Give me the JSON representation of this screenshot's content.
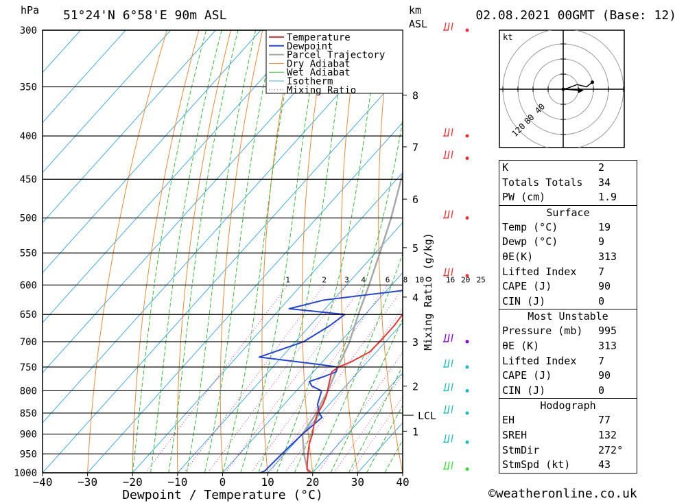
{
  "header": {
    "location": "51°24'N  6°58'E  90m  ASL",
    "datetime": "02.08.2021  00GMT  (Base: 12)",
    "pressure_unit": "hPa",
    "height_unit_line1": "km",
    "height_unit_line2": "ASL"
  },
  "chart_data": {
    "type": "line",
    "title": "",
    "xlabel": "Dewpoint / Temperature (°C)",
    "ylabel": "hPa",
    "mixing_ratio_axis_label": "Mixing Ratio (g/kg)",
    "xlim": [
      -40,
      40
    ],
    "ylim": [
      1000,
      300
    ],
    "y_scale": "log",
    "x_ticks": [
      "−40",
      "−30",
      "−20",
      "−10",
      "0",
      "10",
      "20",
      "30",
      "40"
    ],
    "x_tick_values": [
      -40,
      -30,
      -20,
      -10,
      0,
      10,
      20,
      30,
      40
    ],
    "pressure_levels": [
      300,
      350,
      400,
      450,
      500,
      550,
      600,
      650,
      700,
      750,
      800,
      850,
      900,
      950,
      1000
    ],
    "height_km_labels": [
      {
        "km": "8",
        "p": 358
      },
      {
        "km": "7",
        "p": 412
      },
      {
        "km": "6",
        "p": 475
      },
      {
        "km": "5",
        "p": 542
      },
      {
        "km": "4",
        "p": 620
      },
      {
        "km": "3",
        "p": 700
      },
      {
        "km": "2",
        "p": 790
      },
      {
        "km": "1",
        "p": 893
      }
    ],
    "lcl": {
      "label": "LCL",
      "p": 855
    },
    "mixing_ratio_labels": [
      "1",
      "2",
      "3",
      "4",
      "6",
      "8",
      "10",
      "16",
      "20",
      "25"
    ],
    "legend": [
      "Temperature",
      "Dewpoint",
      "Parcel Trajectory",
      "Dry Adiabat",
      "Wet Adiabat",
      "Isotherm",
      "Mixing Ratio"
    ],
    "legend_position": "top-right",
    "colors": {
      "temperature": "#ee3333",
      "dewpoint": "#2244dd",
      "parcel": "#a8a8a8",
      "dry_adiabat": "#ee8833",
      "wet_adiabat": "#33bb33",
      "isotherm": "#44aaee",
      "mixing_ratio": "#dd3399"
    },
    "series": [
      {
        "name": "Temperature",
        "points": [
          [
            1000,
            19.8
          ],
          [
            990,
            18
          ],
          [
            970,
            16.6
          ],
          [
            950,
            15.2
          ],
          [
            925,
            13.5
          ],
          [
            900,
            12.2
          ],
          [
            875,
            10.5
          ],
          [
            850,
            9.2
          ],
          [
            830,
            8.6
          ],
          [
            810,
            7.6
          ],
          [
            790,
            6.2
          ],
          [
            780,
            5.5
          ],
          [
            770,
            4.8
          ],
          [
            760,
            4.1
          ],
          [
            750,
            4.6
          ],
          [
            740,
            6.3
          ],
          [
            720,
            8.5
          ],
          [
            700,
            8.7
          ],
          [
            670,
            8.7
          ],
          [
            650,
            8.3
          ],
          [
            620,
            8.7
          ],
          [
            600,
            8.7
          ],
          [
            580,
            9.4
          ],
          [
            570,
            10.3
          ],
          [
            560,
            10.0
          ],
          [
            550,
            9.5
          ],
          [
            530,
            8.7
          ],
          [
            500,
            7.8
          ],
          [
            470,
            6.0
          ],
          [
            450,
            4.8
          ],
          [
            440,
            5.3
          ],
          [
            420,
            6.4
          ],
          [
            400,
            5.2
          ],
          [
            375,
            3.4
          ],
          [
            350,
            1.3
          ],
          [
            325,
            0.4
          ],
          [
            300,
            -1.1
          ]
        ]
      },
      {
        "name": "Dewpoint",
        "points": [
          [
            1000,
            8.3
          ],
          [
            995,
            9.0
          ],
          [
            950,
            9.4
          ],
          [
            900,
            10.0
          ],
          [
            860,
            11.0
          ],
          [
            850,
            9.5
          ],
          [
            830,
            7.4
          ],
          [
            800,
            5.6
          ],
          [
            790,
            2.5
          ],
          [
            780,
            1.0
          ],
          [
            770,
            3.2
          ],
          [
            760,
            5.0
          ],
          [
            750,
            4.4
          ],
          [
            745,
            0.0
          ],
          [
            730,
            -15.0
          ],
          [
            700,
            -8.2
          ],
          [
            670,
            -5.6
          ],
          [
            650,
            -4.5
          ],
          [
            640,
            -18.0
          ],
          [
            625,
            -12.0
          ],
          [
            605,
            7.6
          ],
          [
            600,
            7.8
          ],
          [
            580,
            7.0
          ],
          [
            570,
            4.0
          ],
          [
            550,
            5.0
          ],
          [
            510,
            5.4
          ],
          [
            500,
            3.6
          ],
          [
            490,
            1.2
          ],
          [
            470,
            2.1
          ],
          [
            450,
            4.0
          ],
          [
            440,
            2.8
          ],
          [
            430,
            -16.6
          ],
          [
            400,
            -20.0
          ],
          [
            360,
            -12.5
          ],
          [
            340,
            -19.0
          ],
          [
            330,
            -9.0
          ],
          [
            320,
            -12.0
          ],
          [
            310,
            -7.5
          ],
          [
            300,
            -9.0
          ]
        ]
      },
      {
        "name": "Parcel Trajectory",
        "points": [
          [
            1000,
            19.0
          ],
          [
            950,
            14.3
          ],
          [
            900,
            10.0
          ],
          [
            855,
            9.0
          ],
          [
            800,
            7.0
          ],
          [
            750,
            4.5
          ],
          [
            700,
            2.0
          ],
          [
            650,
            -1.5
          ],
          [
            600,
            -5.0
          ],
          [
            550,
            -9.0
          ],
          [
            500,
            -13.5
          ],
          [
            450,
            -19.0
          ],
          [
            400,
            -25.0
          ],
          [
            350,
            -32.0
          ],
          [
            300,
            -40.0
          ]
        ]
      }
    ],
    "wind_barbs": [
      {
        "p": 300,
        "color": "#ee3333"
      },
      {
        "p": 400,
        "color": "#ee3333"
      },
      {
        "p": 425,
        "color": "#ee3333"
      },
      {
        "p": 500,
        "color": "#ee3333"
      },
      {
        "p": 585,
        "color": "#ee3333"
      },
      {
        "p": 700,
        "color": "#8800cc"
      },
      {
        "p": 750,
        "color": "#22bbbb"
      },
      {
        "p": 800,
        "color": "#22bbbb"
      },
      {
        "p": 850,
        "color": "#22bbbb"
      },
      {
        "p": 920,
        "color": "#22bbbb"
      },
      {
        "p": 990,
        "color": "#33dd33"
      }
    ]
  },
  "hodograph": {
    "unit": "kt",
    "ring_labels": [
      "40",
      "80",
      "120"
    ],
    "trace": [
      [
        0,
        0
      ],
      [
        4,
        1
      ],
      [
        12,
        4
      ],
      [
        20,
        2
      ],
      [
        25,
        6
      ]
    ],
    "storm_motion": [
      14,
      -1
    ]
  },
  "indices": {
    "general": [
      {
        "label": "K",
        "value": "2"
      },
      {
        "label": "Totals Totals",
        "value": "34"
      },
      {
        "label": "PW (cm)",
        "value": "1.9"
      }
    ],
    "surface": {
      "title": "Surface",
      "rows": [
        {
          "label": "Temp (°C)",
          "value": "19"
        },
        {
          "label": "Dewp (°C)",
          "value": "9"
        },
        {
          "label": "θE(K)",
          "value": "313"
        },
        {
          "label": "Lifted Index",
          "value": "7"
        },
        {
          "label": "CAPE (J)",
          "value": "90"
        },
        {
          "label": "CIN (J)",
          "value": "0"
        }
      ]
    },
    "most_unstable": {
      "title": "Most Unstable",
      "rows": [
        {
          "label": "Pressure (mb)",
          "value": "995"
        },
        {
          "label": "θE (K)",
          "value": "313"
        },
        {
          "label": "Lifted Index",
          "value": "7"
        },
        {
          "label": "CAPE (J)",
          "value": "90"
        },
        {
          "label": "CIN (J)",
          "value": "0"
        }
      ]
    },
    "hodograph": {
      "title": "Hodograph",
      "rows": [
        {
          "label": "EH",
          "value": "77"
        },
        {
          "label": "SREH",
          "value": "132"
        },
        {
          "label": "StmDir",
          "value": "272°"
        },
        {
          "label": "StmSpd (kt)",
          "value": "43"
        }
      ]
    }
  },
  "watermark": "©weatheronline.co.uk"
}
